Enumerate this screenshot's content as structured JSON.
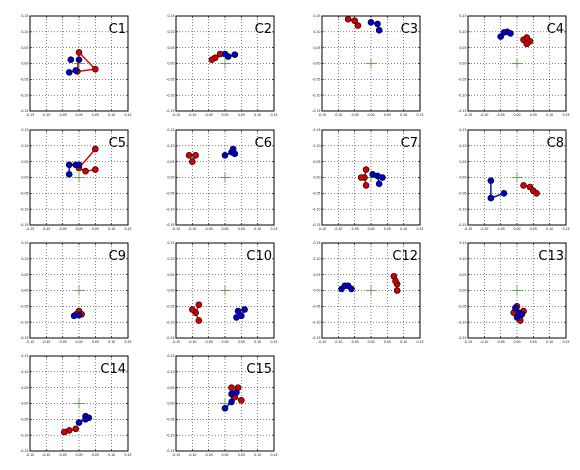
{
  "colors": {
    "red": "#d40000",
    "blue": "#0000c8",
    "cross": "#4a9a3a"
  },
  "chart_data": [
    {
      "type": "scatter",
      "label": "C1",
      "xlim": [
        -0.15,
        0.15
      ],
      "ylim": [
        -0.15,
        0.15
      ],
      "grid": true,
      "xticks": [
        "-0.15",
        "-0.10",
        "-0.05",
        "0.00",
        "0.05",
        "0.10",
        "0.15"
      ],
      "yticks": [
        "0.15",
        "0.10",
        "0.05",
        "0.00",
        "-0.05",
        "-0.10",
        "-0.15"
      ],
      "red": [
        [
          0.0,
          0.035
        ],
        [
          0.05,
          -0.018
        ],
        [
          -0.005,
          -0.025
        ]
      ],
      "blue": [
        [
          -0.03,
          -0.028
        ],
        [
          -0.025,
          0.012
        ],
        [
          0.0,
          0.012
        ],
        [
          -0.01,
          -0.022
        ]
      ],
      "red_bonds": [
        [
          0,
          1
        ],
        [
          1,
          2
        ],
        [
          2,
          0
        ]
      ],
      "blue_bonds": [
        [
          0,
          3
        ]
      ]
    },
    {
      "type": "scatter",
      "label": "C2",
      "xlim": [
        -0.15,
        0.15
      ],
      "ylim": [
        -0.15,
        0.15
      ],
      "grid": true,
      "xticks": [
        "-0.15",
        "-0.10",
        "-0.05",
        "0.00",
        "0.05",
        "0.10",
        "0.15"
      ],
      "yticks": [
        "0.15",
        "0.10",
        "0.05",
        "0.00",
        "-0.05",
        "-0.10",
        "-0.15"
      ],
      "red": [
        [
          -0.03,
          0.018
        ],
        [
          -0.015,
          0.03
        ],
        [
          -0.04,
          0.012
        ]
      ],
      "blue": [
        [
          0.01,
          0.022
        ],
        [
          0.03,
          0.028
        ],
        [
          0.0,
          0.03
        ]
      ],
      "red_bonds": [
        [
          0,
          1
        ],
        [
          0,
          2
        ]
      ],
      "blue_bonds": [
        [
          0,
          1
        ],
        [
          0,
          2
        ]
      ]
    },
    {
      "type": "scatter",
      "label": "C3",
      "xlim": [
        -0.15,
        0.15
      ],
      "ylim": [
        -0.15,
        0.15
      ],
      "grid": true,
      "xticks": [
        "-0.15",
        "-0.10",
        "-0.05",
        "0.00",
        "0.05",
        "0.10",
        "0.15"
      ],
      "yticks": [
        "0.15",
        "0.10",
        "0.05",
        "0.00",
        "-0.05",
        "-0.10",
        "-0.15"
      ],
      "red": [
        [
          -0.07,
          0.14
        ],
        [
          -0.05,
          0.135
        ],
        [
          -0.04,
          0.12
        ]
      ],
      "blue": [
        [
          0.0,
          0.13
        ],
        [
          0.02,
          0.125
        ],
        [
          0.025,
          0.105
        ]
      ],
      "red_bonds": [
        [
          0,
          1
        ],
        [
          1,
          2
        ]
      ],
      "blue_bonds": [
        [
          0,
          1
        ],
        [
          1,
          2
        ]
      ]
    },
    {
      "type": "scatter",
      "label": "C4",
      "xlim": [
        -0.15,
        0.15
      ],
      "ylim": [
        -0.15,
        0.15
      ],
      "grid": true,
      "xticks": [
        "-0.15",
        "-0.10",
        "-0.05",
        "0.00",
        "0.05",
        "0.10",
        "0.15"
      ],
      "yticks": [
        "0.15",
        "0.10",
        "0.05",
        "0.00",
        "-0.05",
        "-0.10",
        "-0.15"
      ],
      "red": [
        [
          0.02,
          0.075
        ],
        [
          0.04,
          0.07
        ],
        [
          0.03,
          0.082
        ],
        [
          0.03,
          0.062
        ]
      ],
      "blue": [
        [
          -0.05,
          0.085
        ],
        [
          -0.03,
          0.1
        ],
        [
          -0.02,
          0.095
        ],
        [
          -0.04,
          0.098
        ]
      ],
      "red_bonds": [
        [
          0,
          1
        ],
        [
          0,
          2
        ],
        [
          0,
          3
        ]
      ],
      "blue_bonds": [
        [
          0,
          3
        ],
        [
          3,
          1
        ],
        [
          1,
          2
        ]
      ]
    },
    {
      "type": "scatter",
      "label": "C5",
      "xlim": [
        -0.15,
        0.15
      ],
      "ylim": [
        -0.15,
        0.15
      ],
      "grid": true,
      "xticks": [
        "-0.15",
        "-0.10",
        "-0.05",
        "0.00",
        "0.05",
        "0.10",
        "0.15"
      ],
      "yticks": [
        "0.15",
        "0.10",
        "0.05",
        "0.00",
        "-0.05",
        "-0.10",
        "-0.15"
      ],
      "red": [
        [
          0.05,
          0.09
        ],
        [
          0.0,
          0.03
        ],
        [
          0.05,
          0.025
        ],
        [
          0.02,
          0.02
        ]
      ],
      "blue": [
        [
          -0.03,
          0.04
        ],
        [
          -0.01,
          0.04
        ],
        [
          -0.03,
          0.01
        ],
        [
          0.0,
          0.04
        ]
      ],
      "red_bonds": [
        [
          0,
          1
        ],
        [
          1,
          3
        ],
        [
          3,
          2
        ]
      ],
      "blue_bonds": [
        [
          0,
          1
        ],
        [
          0,
          2
        ]
      ]
    },
    {
      "type": "scatter",
      "label": "C6",
      "xlim": [
        -0.15,
        0.15
      ],
      "ylim": [
        -0.15,
        0.15
      ],
      "grid": true,
      "xticks": [
        "-0.15",
        "-0.10",
        "-0.05",
        "0.00",
        "0.05",
        "0.10",
        "0.15"
      ],
      "yticks": [
        "0.15",
        "0.10",
        "0.05",
        "0.00",
        "-0.05",
        "-0.10",
        "-0.15"
      ],
      "red": [
        [
          -0.1,
          0.05
        ],
        [
          -0.09,
          0.07
        ],
        [
          -0.11,
          0.07
        ]
      ],
      "blue": [
        [
          0.0,
          0.07
        ],
        [
          0.02,
          0.08
        ],
        [
          0.03,
          0.075
        ],
        [
          0.025,
          0.09
        ]
      ],
      "red_bonds": [
        [
          0,
          1
        ],
        [
          0,
          2
        ]
      ],
      "blue_bonds": [
        [
          0,
          1
        ],
        [
          1,
          2
        ],
        [
          1,
          3
        ]
      ]
    },
    {
      "type": "scatter",
      "label": "C7",
      "xlim": [
        -0.15,
        0.15
      ],
      "ylim": [
        -0.15,
        0.15
      ],
      "grid": true,
      "xticks": [
        "-0.15",
        "-0.10",
        "-0.05",
        "0.00",
        "0.05",
        "0.10",
        "0.15"
      ],
      "yticks": [
        "0.15",
        "0.10",
        "0.05",
        "0.00",
        "-0.05",
        "-0.10",
        "-0.15"
      ],
      "red": [
        [
          -0.02,
          0.0
        ],
        [
          -0.015,
          0.025
        ],
        [
          -0.015,
          -0.025
        ],
        [
          -0.03,
          0.0
        ]
      ],
      "blue": [
        [
          0.02,
          0.005
        ],
        [
          0.035,
          0.0
        ],
        [
          0.025,
          -0.02
        ],
        [
          0.005,
          0.01
        ]
      ],
      "red_bonds": [
        [
          0,
          1
        ],
        [
          0,
          2
        ],
        [
          0,
          3
        ]
      ],
      "blue_bonds": [
        [
          0,
          1
        ],
        [
          0,
          2
        ],
        [
          0,
          3
        ]
      ]
    },
    {
      "type": "scatter",
      "label": "C8",
      "xlim": [
        -0.15,
        0.15
      ],
      "ylim": [
        -0.15,
        0.15
      ],
      "grid": true,
      "xticks": [
        "-0.15",
        "-0.10",
        "-0.05",
        "0.00",
        "0.05",
        "0.10",
        "0.15"
      ],
      "yticks": [
        "0.15",
        "0.10",
        "0.05",
        "0.00",
        "-0.05",
        "-0.10",
        "-0.15"
      ],
      "red": [
        [
          0.02,
          -0.025
        ],
        [
          0.04,
          -0.03
        ],
        [
          0.05,
          -0.042
        ],
        [
          0.06,
          -0.05
        ]
      ],
      "blue": [
        [
          -0.08,
          -0.01
        ],
        [
          -0.08,
          -0.065
        ],
        [
          -0.04,
          -0.05
        ]
      ],
      "red_bonds": [
        [
          0,
          1
        ],
        [
          1,
          2
        ],
        [
          2,
          3
        ]
      ],
      "blue_bonds": [
        [
          0,
          1
        ],
        [
          1,
          2
        ]
      ]
    },
    {
      "type": "scatter",
      "label": "C9",
      "xlim": [
        -0.15,
        0.15
      ],
      "ylim": [
        -0.15,
        0.15
      ],
      "grid": true,
      "xticks": [
        "-0.15",
        "-0.10",
        "-0.05",
        "0.00",
        "0.05",
        "0.10",
        "0.15"
      ],
      "yticks": [
        "0.15",
        "0.10",
        "0.05",
        "0.00",
        "-0.05",
        "-0.10",
        "-0.15"
      ],
      "red": [
        [
          0.0,
          -0.065
        ],
        [
          0.008,
          -0.075
        ],
        [
          -0.008,
          -0.075
        ]
      ],
      "blue": [
        [
          -0.015,
          -0.08
        ],
        [
          0.0,
          -0.078
        ]
      ],
      "red_bonds": [
        [
          0,
          1
        ],
        [
          0,
          2
        ]
      ],
      "blue_bonds": [
        [
          0,
          1
        ]
      ]
    },
    {
      "type": "scatter",
      "label": "C10",
      "xlim": [
        -0.15,
        0.15
      ],
      "ylim": [
        -0.15,
        0.15
      ],
      "grid": true,
      "xticks": [
        "-0.15",
        "-0.10",
        "-0.05",
        "0.00",
        "0.05",
        "0.10",
        "0.15"
      ],
      "yticks": [
        "0.15",
        "0.10",
        "0.05",
        "0.00",
        "-0.05",
        "-0.10",
        "-0.15"
      ],
      "red": [
        [
          -0.08,
          -0.045
        ],
        [
          -0.08,
          -0.095
        ],
        [
          -0.09,
          -0.07
        ],
        [
          -0.1,
          -0.06
        ]
      ],
      "blue": [
        [
          0.04,
          -0.065
        ],
        [
          0.05,
          -0.08
        ],
        [
          0.06,
          -0.06
        ],
        [
          0.035,
          -0.085
        ]
      ],
      "red_bonds": [
        [
          0,
          2
        ],
        [
          2,
          1
        ],
        [
          2,
          3
        ]
      ],
      "blue_bonds": [
        [
          0,
          1
        ],
        [
          1,
          2
        ],
        [
          1,
          3
        ]
      ]
    },
    {
      "type": "scatter",
      "label": "C12",
      "xlim": [
        -0.15,
        0.15
      ],
      "ylim": [
        -0.15,
        0.15
      ],
      "grid": true,
      "xticks": [
        "-0.15",
        "-0.10",
        "-0.05",
        "0.00",
        "0.05",
        "0.10",
        "0.15"
      ],
      "yticks": [
        "0.15",
        "0.10",
        "0.05",
        "0.00",
        "-0.05",
        "-0.10",
        "-0.15"
      ],
      "red": [
        [
          0.07,
          0.045
        ],
        [
          0.08,
          0.02
        ],
        [
          0.08,
          0.0
        ],
        [
          0.075,
          0.03
        ]
      ],
      "blue": [
        [
          -0.09,
          0.005
        ],
        [
          -0.08,
          0.015
        ],
        [
          -0.06,
          0.005
        ],
        [
          -0.07,
          0.015
        ]
      ],
      "red_bonds": [
        [
          0,
          3
        ],
        [
          3,
          1
        ],
        [
          1,
          2
        ]
      ],
      "blue_bonds": [
        [
          0,
          1
        ],
        [
          1,
          3
        ],
        [
          3,
          2
        ]
      ]
    },
    {
      "type": "scatter",
      "label": "C13",
      "xlim": [
        -0.15,
        0.15
      ],
      "ylim": [
        -0.15,
        0.15
      ],
      "grid": true,
      "xticks": [
        "-0.15",
        "-0.10",
        "-0.05",
        "0.00",
        "0.05",
        "0.10",
        "0.15"
      ],
      "yticks": [
        "0.15",
        "0.10",
        "0.05",
        "0.00",
        "-0.05",
        "-0.10",
        "-0.15"
      ],
      "red": [
        [
          0.0,
          -0.05
        ],
        [
          0.01,
          -0.08
        ],
        [
          0.02,
          -0.065
        ],
        [
          -0.01,
          -0.07
        ],
        [
          0.01,
          -0.095
        ]
      ],
      "blue": [
        [
          0.005,
          -0.07
        ],
        [
          -0.005,
          -0.055
        ],
        [
          0.015,
          -0.075
        ],
        [
          0.0,
          -0.085
        ]
      ],
      "red_bonds": [
        [
          0,
          1
        ],
        [
          1,
          2
        ],
        [
          1,
          3
        ],
        [
          1,
          4
        ]
      ],
      "blue_bonds": [
        [
          0,
          1
        ],
        [
          0,
          2
        ],
        [
          0,
          3
        ]
      ]
    },
    {
      "type": "scatter",
      "label": "C14",
      "xlim": [
        -0.15,
        0.15
      ],
      "ylim": [
        -0.15,
        0.15
      ],
      "grid": true,
      "xticks": [
        "-0.15",
        "-0.10",
        "-0.05",
        "0.00",
        "0.05",
        "0.10",
        "0.15"
      ],
      "yticks": [
        "0.15",
        "0.10",
        "0.05",
        "0.00",
        "-0.05",
        "-0.10",
        "-0.15"
      ],
      "red": [
        [
          -0.03,
          -0.085
        ],
        [
          -0.01,
          -0.08
        ],
        [
          -0.045,
          -0.09
        ]
      ],
      "blue": [
        [
          0.02,
          -0.04
        ],
        [
          0.03,
          -0.045
        ],
        [
          0.0,
          -0.06
        ],
        [
          0.02,
          -0.05
        ]
      ],
      "red_bonds": [
        [
          0,
          1
        ],
        [
          0,
          2
        ]
      ],
      "blue_bonds": [
        [
          0,
          1
        ],
        [
          0,
          3
        ],
        [
          3,
          2
        ]
      ]
    },
    {
      "type": "scatter",
      "label": "C15",
      "xlim": [
        -0.15,
        0.15
      ],
      "ylim": [
        -0.15,
        0.15
      ],
      "grid": true,
      "xticks": [
        "-0.15",
        "-0.10",
        "-0.05",
        "0.00",
        "0.05",
        "0.10",
        "0.15"
      ],
      "yticks": [
        "0.15",
        "0.10",
        "0.05",
        "0.00",
        "-0.05",
        "-0.10",
        "-0.15"
      ],
      "red": [
        [
          0.02,
          0.05
        ],
        [
          0.04,
          0.05
        ],
        [
          0.03,
          0.02
        ],
        [
          0.05,
          0.01
        ]
      ],
      "blue": [
        [
          0.02,
          0.03
        ],
        [
          0.0,
          -0.015
        ],
        [
          0.02,
          0.005
        ],
        [
          0.035,
          0.035
        ]
      ],
      "red_bonds": [
        [
          0,
          2
        ],
        [
          1,
          2
        ],
        [
          2,
          3
        ]
      ],
      "blue_bonds": [
        [
          0,
          2
        ],
        [
          2,
          1
        ],
        [
          0,
          3
        ]
      ]
    }
  ]
}
